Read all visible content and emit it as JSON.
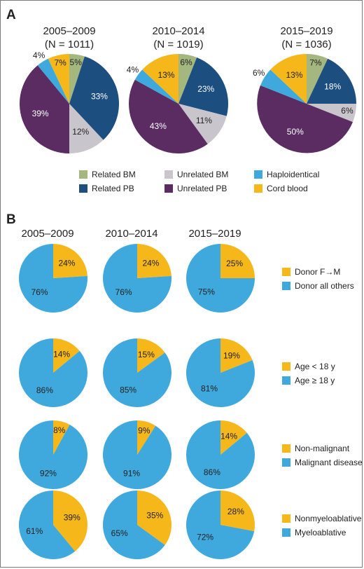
{
  "panels": {
    "a": "A",
    "b": "B"
  },
  "colors": {
    "related_bm": "#a3b77f",
    "unrelated_bm": "#c8c6cc",
    "haplo": "#3fa9dd",
    "related_pb": "#1c4e80",
    "unrelated_pb": "#5a2c62",
    "cord": "#f5b719",
    "gold": "#f5b719",
    "blue": "#3fa9dd"
  },
  "chart_data": [
    {
      "type": "pie",
      "panel": "A",
      "title": "2005–2009",
      "subtitle": "(N = 1011)",
      "slices": [
        {
          "name": "Related BM",
          "value": 5,
          "label": "5%"
        },
        {
          "name": "Related PB",
          "value": 33,
          "label": "33%"
        },
        {
          "name": "Unrelated BM",
          "value": 12,
          "label": "12%"
        },
        {
          "name": "Unrelated PB",
          "value": 39,
          "label": "39%"
        },
        {
          "name": "Haploidentical",
          "value": 4,
          "label": "4%"
        },
        {
          "name": "Cord blood",
          "value": 7,
          "label": "7%"
        }
      ]
    },
    {
      "type": "pie",
      "panel": "A",
      "title": "2010–2014",
      "subtitle": "(N = 1019)",
      "slices": [
        {
          "name": "Related BM",
          "value": 6,
          "label": "6%"
        },
        {
          "name": "Related PB",
          "value": 23,
          "label": "23%"
        },
        {
          "name": "Unrelated BM",
          "value": 11,
          "label": "11%"
        },
        {
          "name": "Unrelated PB",
          "value": 43,
          "label": "43%"
        },
        {
          "name": "Haploidentical",
          "value": 4,
          "label": "4%"
        },
        {
          "name": "Cord blood",
          "value": 13,
          "label": "13%"
        }
      ]
    },
    {
      "type": "pie",
      "panel": "A",
      "title": "2015–2019",
      "subtitle": "(N = 1036)",
      "slices": [
        {
          "name": "Related BM",
          "value": 7,
          "label": "7%"
        },
        {
          "name": "Related PB",
          "value": 18,
          "label": "18%"
        },
        {
          "name": "Unrelated BM",
          "value": 6,
          "label": "6%"
        },
        {
          "name": "Unrelated PB",
          "value": 50,
          "label": "50%"
        },
        {
          "name": "Haploidentical",
          "value": 6,
          "label": "6%"
        },
        {
          "name": "Cord blood",
          "value": 13,
          "label": "13%"
        }
      ]
    },
    {
      "type": "pie",
      "panel": "B",
      "titles": [
        "2005–2009",
        "2010–2014",
        "2015–2019"
      ],
      "rows": [
        {
          "categories": [
            "Donor F→M",
            "Donor all others"
          ],
          "values": [
            [
              24,
              76
            ],
            [
              24,
              76
            ],
            [
              25,
              75
            ]
          ],
          "labels": [
            [
              "24%",
              "76%"
            ],
            [
              "24%",
              "76%"
            ],
            [
              "25%",
              "75%"
            ]
          ]
        },
        {
          "categories": [
            "Age < 18 y",
            "Age ≥ 18 y"
          ],
          "values": [
            [
              14,
              86
            ],
            [
              15,
              85
            ],
            [
              19,
              81
            ]
          ],
          "labels": [
            [
              "14%",
              "86%"
            ],
            [
              "15%",
              "85%"
            ],
            [
              "19%",
              "81%"
            ]
          ]
        },
        {
          "categories": [
            "Non-malignant",
            "Malignant disease"
          ],
          "values": [
            [
              8,
              92
            ],
            [
              9,
              91
            ],
            [
              14,
              86
            ]
          ],
          "labels": [
            [
              "8%",
              "92%"
            ],
            [
              "9%",
              "91%"
            ],
            [
              "14%",
              "86%"
            ]
          ]
        },
        {
          "categories": [
            "Nonmyeloablative",
            "Myeloablative"
          ],
          "values": [
            [
              39,
              61
            ],
            [
              35,
              65
            ],
            [
              28,
              72
            ]
          ],
          "labels": [
            [
              "39%",
              "61%"
            ],
            [
              "35%",
              "65%"
            ],
            [
              "28%",
              "72%"
            ]
          ]
        }
      ]
    }
  ],
  "legend_a": [
    {
      "label": "Related BM",
      "color": "#a3b77f"
    },
    {
      "label": "Unrelated BM",
      "color": "#c8c6cc"
    },
    {
      "label": "Haploidentical",
      "color": "#3fa9dd"
    },
    {
      "label": "Related PB",
      "color": "#1c4e80"
    },
    {
      "label": "Unrelated PB",
      "color": "#5a2c62"
    },
    {
      "label": "Cord blood",
      "color": "#f5b719"
    }
  ]
}
